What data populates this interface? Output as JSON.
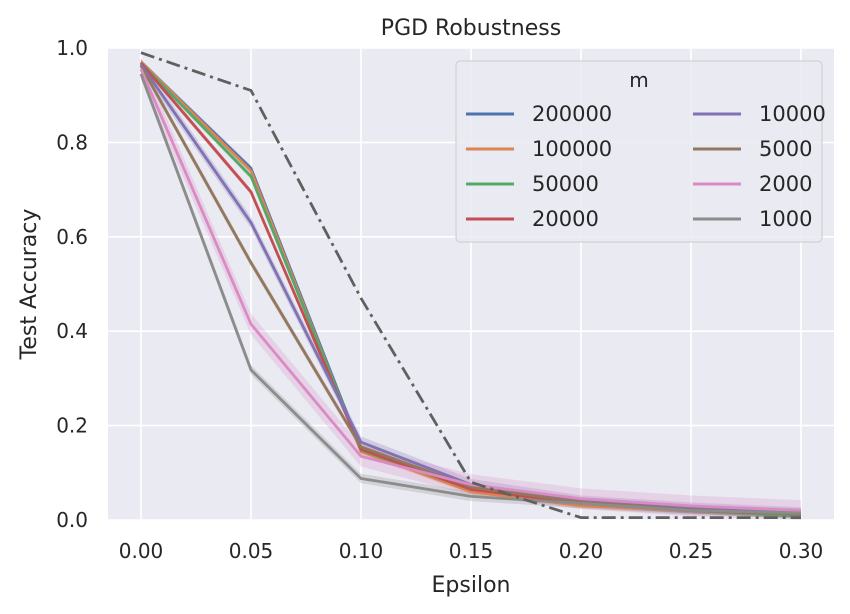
{
  "chart_data": {
    "type": "line",
    "title": "PGD Robustness",
    "xlabel": "Epsilon",
    "ylabel": "Test Accuracy",
    "xlim": [
      -0.015,
      0.315
    ],
    "ylim": [
      0,
      1
    ],
    "x": [
      0.0,
      0.05,
      0.1,
      0.15,
      0.2,
      0.25,
      0.3
    ],
    "x_tick_labels": [
      "0.00",
      "0.05",
      "0.10",
      "0.15",
      "0.20",
      "0.25",
      "0.30"
    ],
    "y_ticks": [
      0,
      0.2,
      0.4,
      0.6,
      0.8,
      1.0
    ],
    "y_tick_labels": [
      "0.0",
      "0.2",
      "0.4",
      "0.6",
      "0.8",
      "1.0"
    ],
    "grid": true,
    "legend": {
      "title": "m",
      "position": "top-right",
      "columns": 2
    },
    "series": [
      {
        "name": "200000",
        "color": "#4c72b0",
        "values": [
          0.97,
          0.745,
          0.15,
          0.07,
          0.04,
          0.025,
          0.012
        ],
        "band": 0.006
      },
      {
        "name": "100000",
        "color": "#dd8452",
        "values": [
          0.97,
          0.74,
          0.145,
          0.06,
          0.03,
          0.02,
          0.01
        ],
        "band": 0.006
      },
      {
        "name": "50000",
        "color": "#55a868",
        "values": [
          0.968,
          0.728,
          0.148,
          0.065,
          0.035,
          0.02,
          0.008
        ],
        "band": 0.006
      },
      {
        "name": "20000",
        "color": "#c44e52",
        "values": [
          0.968,
          0.695,
          0.15,
          0.065,
          0.035,
          0.02,
          0.012
        ],
        "band": 0.006
      },
      {
        "name": "10000",
        "color": "#8172b3",
        "values": [
          0.965,
          0.63,
          0.165,
          0.075,
          0.04,
          0.025,
          0.015
        ],
        "band": 0.012
      },
      {
        "name": "5000",
        "color": "#937860",
        "values": [
          0.962,
          0.545,
          0.155,
          0.07,
          0.038,
          0.022,
          0.012
        ],
        "band": 0.008
      },
      {
        "name": "2000",
        "color": "#da8bc3",
        "values": [
          0.955,
          0.415,
          0.135,
          0.075,
          0.045,
          0.03,
          0.02
        ],
        "band": 0.022
      },
      {
        "name": "1000",
        "color": "#8c8c8c",
        "values": [
          0.945,
          0.318,
          0.088,
          0.05,
          0.035,
          0.02,
          0.015
        ],
        "band": 0.01
      }
    ],
    "reference_line": {
      "style": "dash-dot",
      "color": "#606060",
      "values": [
        0.99,
        0.91,
        0.47,
        0.08,
        0.005,
        0.005,
        0.005
      ]
    }
  }
}
